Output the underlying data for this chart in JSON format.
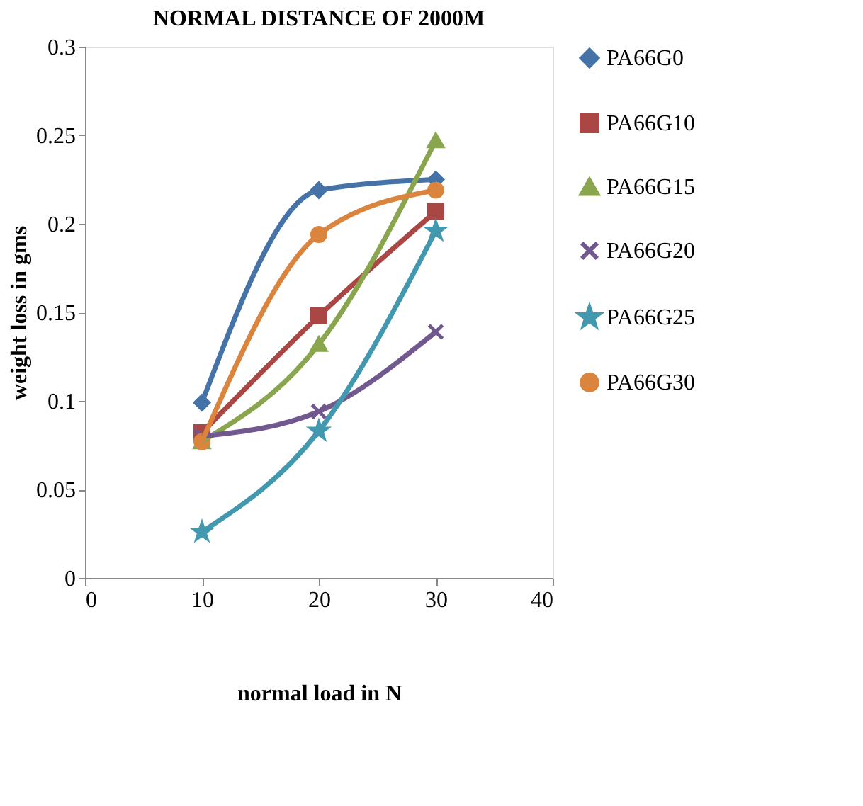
{
  "chart_data": {
    "type": "line",
    "title": "NORMAL  DISTANCE OF 2000M",
    "xlabel": "normal load in N",
    "ylabel": "weight loss in gms",
    "x": [
      10,
      20,
      30
    ],
    "xlim": [
      0,
      40
    ],
    "xticks": [
      0,
      10,
      20,
      30,
      40
    ],
    "ylim": [
      0,
      0.3
    ],
    "yticks": [
      0,
      0.05,
      0.1,
      0.15,
      0.2,
      0.25,
      0.3
    ],
    "grid": false,
    "legend": "right",
    "line_style": "solid",
    "series": [
      {
        "name": "PA66G0",
        "color": "#4572a7",
        "marker": "diamond",
        "values": [
          0.099,
          0.219,
          0.225
        ]
      },
      {
        "name": "PA66G10",
        "color": "#aa4643",
        "marker": "square",
        "values": [
          0.082,
          0.148,
          0.207
        ]
      },
      {
        "name": "PA66G15",
        "color": "#89a54e",
        "marker": "triangle",
        "values": [
          0.077,
          0.132,
          0.247
        ]
      },
      {
        "name": "PA66G20",
        "color": "#71588f",
        "marker": "cross",
        "values": [
          0.08,
          0.094,
          0.139
        ]
      },
      {
        "name": "PA66G25",
        "color": "#4198af",
        "marker": "star",
        "values": [
          0.026,
          0.083,
          0.196
        ]
      },
      {
        "name": "PA66G30",
        "color": "#db843d",
        "marker": "circle",
        "values": [
          0.077,
          0.194,
          0.219
        ]
      }
    ]
  }
}
